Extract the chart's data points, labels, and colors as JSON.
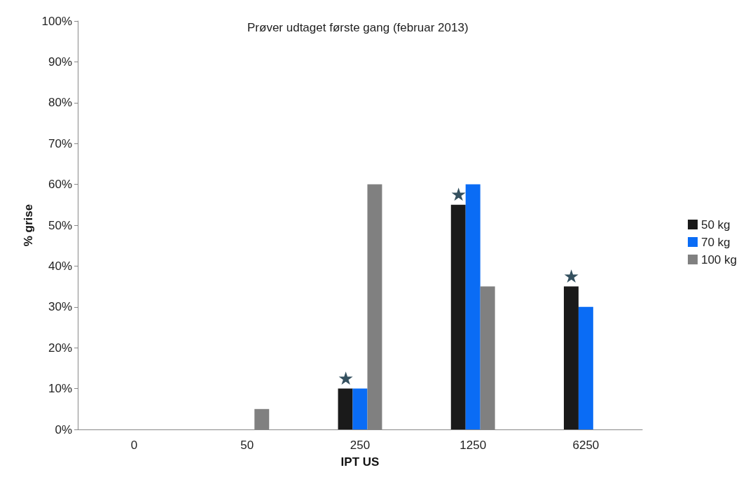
{
  "chart_data": {
    "type": "bar",
    "title": "Prøver udtaget første gang (februar 2013)",
    "xlabel": "IPT US",
    "ylabel": "% grise",
    "categories": [
      "0",
      "50",
      "250",
      "1250",
      "6250"
    ],
    "series": [
      {
        "name": "50 kg",
        "color": "#1a1a1a",
        "values": [
          0,
          0,
          10,
          55,
          35
        ]
      },
      {
        "name": "70 kg",
        "color": "#0a6cf5",
        "values": [
          0,
          0,
          10,
          60,
          30
        ]
      },
      {
        "name": "100 kg",
        "color": "#808080",
        "values": [
          0,
          5,
          60,
          35,
          0
        ]
      }
    ],
    "ylim": [
      0,
      100
    ],
    "yticks": [
      {
        "value": 0,
        "label": "0%"
      },
      {
        "value": 10,
        "label": "10%"
      },
      {
        "value": 20,
        "label": "20%"
      },
      {
        "value": 30,
        "label": "30%"
      },
      {
        "value": 40,
        "label": "40%"
      },
      {
        "value": 50,
        "label": "50%"
      },
      {
        "value": 60,
        "label": "60%"
      },
      {
        "value": 70,
        "label": "70%"
      },
      {
        "value": 80,
        "label": "80%"
      },
      {
        "value": 90,
        "label": "90%"
      },
      {
        "value": 100,
        "label": "100%"
      }
    ],
    "annotations": [
      "★",
      "★",
      "★"
    ],
    "grid": false,
    "legend": "right"
  }
}
